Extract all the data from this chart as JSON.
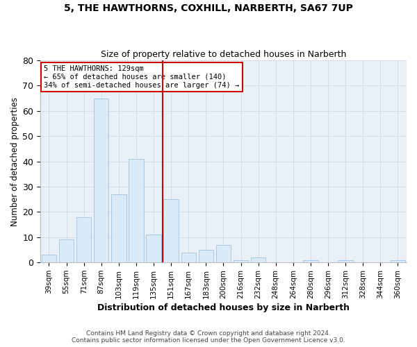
{
  "title_line1": "5, THE HAWTHORNS, COXHILL, NARBERTH, SA67 7UP",
  "title_line2": "Size of property relative to detached houses in Narberth",
  "xlabel": "Distribution of detached houses by size in Narberth",
  "ylabel": "Number of detached properties",
  "categories": [
    "39sqm",
    "55sqm",
    "71sqm",
    "87sqm",
    "103sqm",
    "119sqm",
    "135sqm",
    "151sqm",
    "167sqm",
    "183sqm",
    "200sqm",
    "216sqm",
    "232sqm",
    "248sqm",
    "264sqm",
    "280sqm",
    "296sqm",
    "312sqm",
    "328sqm",
    "344sqm",
    "360sqm"
  ],
  "values": [
    3,
    9,
    18,
    65,
    27,
    41,
    11,
    25,
    4,
    5,
    7,
    1,
    2,
    0,
    0,
    1,
    0,
    1,
    0,
    0,
    1
  ],
  "bar_color": "#daeaf6",
  "bar_edge_color": "#a8c8e0",
  "vline_pos": 6.5,
  "vline_color": "#cc0000",
  "annotation_text": "5 THE HAWTHORNS: 129sqm\n← 65% of detached houses are smaller (140)\n34% of semi-detached houses are larger (74) →",
  "annotation_box_edgecolor": "#cc0000",
  "ylim": [
    0,
    80
  ],
  "yticks": [
    0,
    10,
    20,
    30,
    40,
    50,
    60,
    70,
    80
  ],
  "grid_color": "#d0d8e8",
  "axes_bg_color": "#eaf0f8",
  "footnote": "Contains HM Land Registry data © Crown copyright and database right 2024.\nContains public sector information licensed under the Open Government Licence v3.0."
}
